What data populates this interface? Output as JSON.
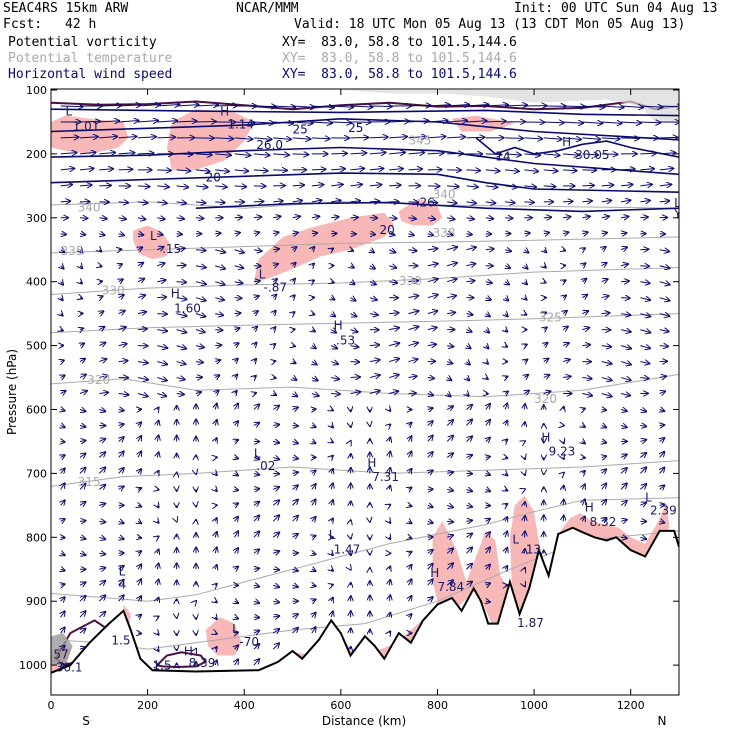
{
  "header": {
    "model": "SEAC4RS 15km ARW",
    "fcst_label": "Fcst:",
    "fcst_value": "42 h",
    "center": "NCAR/MMM",
    "init": "Init: 00 UTC Sun 04 Aug 13",
    "valid": "Valid: 18 UTC Mon 05 Aug 13 (13 CDT Mon 05 Aug 13)",
    "fields": [
      {
        "name": "Potential vorticity",
        "xy": "XY=  83.0, 58.8 to 101.5,144.6",
        "color": "#000000"
      },
      {
        "name": "Potential temperature",
        "xy": "XY=  83.0, 58.8 to 101.5,144.6",
        "color": "#aaaaaa"
      },
      {
        "name": "Horizontal wind speed",
        "xy": "XY=  83.0, 58.8 to 101.5,144.6",
        "color": "#0a0a70"
      }
    ]
  },
  "chart_data": {
    "type": "cross-section",
    "xlabel": "Distance (km)",
    "ylabel": "Pressure (hPa)",
    "xlim": [
      0,
      1300
    ],
    "ylim": [
      1030,
      100
    ],
    "x_ticks": [
      0,
      200,
      400,
      600,
      800,
      1000,
      1200
    ],
    "y_ticks": [
      100,
      200,
      300,
      400,
      500,
      600,
      700,
      800,
      900,
      1000
    ],
    "x_end_labels": {
      "left": "S",
      "right": "N"
    },
    "colors": {
      "pv_fill": "#f8b8b8",
      "pv_contour": "#4a1040",
      "theta": "#aaaaaa",
      "wind": "#0a0a70",
      "terrain": "#000000"
    },
    "theta_labels": [
      {
        "text": "340",
        "x": 55,
        "p": 290
      },
      {
        "text": "335",
        "x": 20,
        "p": 358
      },
      {
        "text": "330",
        "x": 105,
        "p": 420
      },
      {
        "text": "330",
        "x": 720,
        "p": 405
      },
      {
        "text": "325",
        "x": 1010,
        "p": 462
      },
      {
        "text": "320",
        "x": 75,
        "p": 560
      },
      {
        "text": "320",
        "x": 1000,
        "p": 590
      },
      {
        "text": "315",
        "x": 55,
        "p": 720
      },
      {
        "text": "340",
        "x": 790,
        "p": 270
      },
      {
        "text": "345",
        "x": 740,
        "p": 185
      },
      {
        "text": "338",
        "x": 790,
        "p": 330
      }
    ],
    "wind_labels": [
      {
        "text": "20",
        "x": 320,
        "p": 243
      },
      {
        "text": "20",
        "x": 680,
        "p": 325
      },
      {
        "text": "25",
        "x": 500,
        "p": 168
      },
      {
        "text": "25",
        "x": 615,
        "p": 166
      },
      {
        "text": "26.0",
        "x": 425,
        "p": 192
      }
    ],
    "pv_labels": [
      {
        "text": "L",
        "x": 30,
        "p": 140
      },
      {
        "text": "1.01",
        "x": 45,
        "p": 163
      },
      {
        "text": "H",
        "x": 350,
        "p": 140
      },
      {
        "text": "1.14",
        "x": 365,
        "p": 160
      },
      {
        "text": "L",
        "x": 205,
        "p": 335
      },
      {
        "text": ".15",
        "x": 230,
        "p": 355
      },
      {
        "text": "L",
        "x": 430,
        "p": 395
      },
      {
        "text": "-.87",
        "x": 440,
        "p": 415
      },
      {
        "text": "H",
        "x": 248,
        "p": 425
      },
      {
        "text": "1.60",
        "x": 255,
        "p": 448
      },
      {
        "text": "H",
        "x": 585,
        "p": 475
      },
      {
        "text": ".53",
        "x": 590,
        "p": 498
      },
      {
        "text": ".26",
        "x": 755,
        "p": 282
      },
      {
        "text": "H",
        "x": 1058,
        "p": 188
      },
      {
        "text": "30.05",
        "x": 1085,
        "p": 208
      },
      {
        "text": "14",
        "x": 920,
        "p": 210
      },
      {
        "text": "L",
        "x": 1290,
        "p": 283
      },
      {
        "text": "Y",
        "x": 1290,
        "p": 300
      },
      {
        "text": "L",
        "x": 420,
        "p": 675
      },
      {
        "text": ".02",
        "x": 425,
        "p": 695
      },
      {
        "text": "H",
        "x": 655,
        "p": 690
      },
      {
        "text": "7.31",
        "x": 665,
        "p": 712
      },
      {
        "text": "H",
        "x": 1015,
        "p": 650
      },
      {
        "text": "9.23",
        "x": 1030,
        "p": 672
      },
      {
        "text": "L",
        "x": 1230,
        "p": 744
      },
      {
        "text": "2.39",
        "x": 1240,
        "p": 764
      },
      {
        "text": "H",
        "x": 1105,
        "p": 760
      },
      {
        "text": "8.32",
        "x": 1115,
        "p": 782
      },
      {
        "text": "L",
        "x": 575,
        "p": 803
      },
      {
        "text": "1.47",
        "x": 585,
        "p": 825
      },
      {
        "text": "L",
        "x": 955,
        "p": 810
      },
      {
        "text": ".13",
        "x": 975,
        "p": 825
      },
      {
        "text": "H",
        "x": 785,
        "p": 862
      },
      {
        "text": "7.84",
        "x": 800,
        "p": 884
      },
      {
        "text": "1.87",
        "x": 965,
        "p": 940
      },
      {
        "text": "L",
        "x": 140,
        "p": 860
      },
      {
        "text": "4",
        "x": 140,
        "p": 880
      },
      {
        "text": "1.5",
        "x": 125,
        "p": 968
      },
      {
        "text": "L",
        "x": 375,
        "p": 950
      },
      {
        "text": "-70",
        "x": 390,
        "p": 970
      },
      {
        "text": "H",
        "x": 275,
        "p": 985
      },
      {
        "text": "8.39",
        "x": 285,
        "p": 1003
      },
      {
        "text": "57",
        "x": 5,
        "p": 990
      },
      {
        "text": "1.5",
        "x": 210,
        "p": 1007
      },
      {
        "text": "30.1",
        "x": 10,
        "p": 1010
      }
    ]
  }
}
